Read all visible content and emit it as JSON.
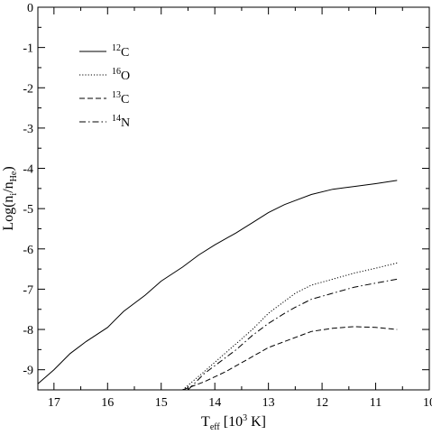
{
  "chart_data": {
    "type": "line",
    "xlabel": {
      "main": "T",
      "sub": "eff",
      "rest": " [10",
      "sup": "3",
      "tail": " K]"
    },
    "ylabel": {
      "main": "Log(n",
      "sub": "i",
      "mid": "/n",
      "sub2": "He",
      "tail": ")"
    },
    "xlim": [
      17.3,
      10
    ],
    "ylim": [
      -9.5,
      0
    ],
    "x_ticks": [
      17,
      16,
      15,
      14,
      13,
      12,
      11,
      10
    ],
    "x_tick_labels": [
      "17",
      "16",
      "15",
      "14",
      "13",
      "12",
      "11",
      "10"
    ],
    "y_ticks": [
      0,
      -1,
      -2,
      -3,
      -4,
      -5,
      -6,
      -7,
      -8,
      -9
    ],
    "y_tick_labels": [
      "0",
      "-1",
      "-2",
      "-3",
      "-4",
      "-5",
      "-6",
      "-7",
      "-8",
      "-9"
    ],
    "grid": false,
    "legend_position": "top-left",
    "series": [
      {
        "name": {
          "sup": "12",
          "base": "C"
        },
        "style": "solid",
        "x": [
          17.3,
          17.0,
          16.7,
          16.4,
          16.0,
          15.7,
          15.3,
          15.0,
          14.6,
          14.3,
          14.0,
          13.6,
          13.3,
          13.0,
          12.7,
          12.5,
          12.2,
          11.8,
          11.4,
          11.0,
          10.6
        ],
        "y": [
          -9.35,
          -9.0,
          -8.6,
          -8.3,
          -7.95,
          -7.55,
          -7.15,
          -6.8,
          -6.45,
          -6.15,
          -5.9,
          -5.6,
          -5.35,
          -5.1,
          -4.9,
          -4.8,
          -4.65,
          -4.52,
          -4.45,
          -4.38,
          -4.3
        ]
      },
      {
        "name": {
          "sup": "16",
          "base": "O"
        },
        "style": "dotted",
        "x": [
          14.6,
          14.2,
          13.9,
          13.6,
          13.3,
          13.0,
          12.7,
          12.5,
          12.2,
          11.8,
          11.4,
          11.0,
          10.6
        ],
        "y": [
          -9.5,
          -9.05,
          -8.7,
          -8.35,
          -8.0,
          -7.6,
          -7.3,
          -7.1,
          -6.9,
          -6.75,
          -6.6,
          -6.48,
          -6.35
        ]
      },
      {
        "name": {
          "sup": "13",
          "base": "C"
        },
        "style": "dashed",
        "x": [
          14.6,
          14.2,
          13.8,
          13.4,
          13.0,
          12.6,
          12.2,
          11.8,
          11.4,
          11.0,
          10.6
        ],
        "y": [
          -9.5,
          -9.3,
          -9.05,
          -8.75,
          -8.45,
          -8.25,
          -8.05,
          -7.97,
          -7.93,
          -7.95,
          -8.0
        ]
      },
      {
        "name": {
          "sup": "14",
          "base": "N"
        },
        "style": "dashdot",
        "x": [
          14.5,
          14.2,
          13.9,
          13.6,
          13.3,
          13.0,
          12.7,
          12.5,
          12.2,
          11.8,
          11.4,
          11.0,
          10.6
        ],
        "y": [
          -9.5,
          -9.1,
          -8.8,
          -8.5,
          -8.15,
          -7.85,
          -7.6,
          -7.45,
          -7.25,
          -7.1,
          -6.95,
          -6.85,
          -6.75
        ]
      }
    ]
  }
}
